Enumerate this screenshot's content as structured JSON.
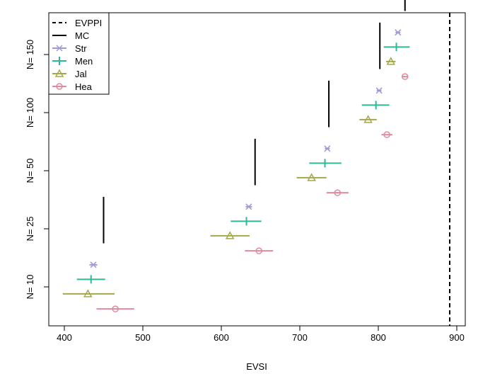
{
  "chart_data": {
    "type": "scatter",
    "xlabel": "EVSI",
    "ylabel": "",
    "xlim": [
      380,
      910
    ],
    "x_ticks": [
      400,
      500,
      600,
      700,
      800,
      900
    ],
    "categories": [
      "N= 10",
      "N= 25",
      "N= 50",
      "N= 100",
      "N= 150"
    ],
    "evppi": 891,
    "legend": {
      "placement": "top-left",
      "entries": [
        "EVPPI",
        "MC",
        "Str",
        "Men",
        "Jal",
        "Hea"
      ]
    },
    "mc": [
      {
        "value": 450,
        "low": 0.75,
        "high": 1.55
      },
      {
        "value": 643,
        "low": 1.75,
        "high": 2.55
      },
      {
        "value": 737,
        "low": 2.75,
        "high": 3.55
      },
      {
        "value": 802,
        "low": 3.75,
        "high": 4.55
      },
      {
        "value": 834,
        "low": 4.75,
        "high": 5.55
      }
    ],
    "series": [
      {
        "name": "Str",
        "color": "#9E9AD8",
        "marker": "x",
        "offset": 0.38,
        "points": [
          {
            "x": 437,
            "lo": 432,
            "hi": 442
          },
          {
            "x": 635,
            "lo": 631,
            "hi": 639
          },
          {
            "x": 735,
            "lo": 732,
            "hi": 738
          },
          {
            "x": 801,
            "lo": 798,
            "hi": 804
          },
          {
            "x": 825,
            "lo": 822,
            "hi": 828
          }
        ]
      },
      {
        "name": "Men",
        "color": "#2DB89A",
        "marker": "plus",
        "offset": 0.13,
        "points": [
          {
            "x": 434,
            "lo": 416,
            "hi": 452
          },
          {
            "x": 632,
            "lo": 612,
            "hi": 651
          },
          {
            "x": 732,
            "lo": 712,
            "hi": 753
          },
          {
            "x": 797,
            "lo": 779,
            "hi": 814
          },
          {
            "x": 823,
            "lo": 807,
            "hi": 840
          }
        ]
      },
      {
        "name": "Jal",
        "color": "#A5A84A",
        "marker": "triangle",
        "offset": -0.12,
        "points": [
          {
            "x": 430,
            "lo": 398,
            "hi": 464
          },
          {
            "x": 611,
            "lo": 586,
            "hi": 636
          },
          {
            "x": 715,
            "lo": 696,
            "hi": 734
          },
          {
            "x": 787,
            "lo": 776,
            "hi": 798
          },
          {
            "x": 816,
            "lo": 810,
            "hi": 822
          }
        ]
      },
      {
        "name": "Hea",
        "color": "#E08A9D",
        "marker": "circle",
        "offset": -0.38,
        "points": [
          {
            "x": 465,
            "lo": 441,
            "hi": 489
          },
          {
            "x": 648,
            "lo": 630,
            "hi": 666
          },
          {
            "x": 748,
            "lo": 734,
            "hi": 762
          },
          {
            "x": 811,
            "lo": 804,
            "hi": 818
          },
          {
            "x": 834,
            "lo": 830,
            "hi": 838
          }
        ]
      }
    ]
  }
}
